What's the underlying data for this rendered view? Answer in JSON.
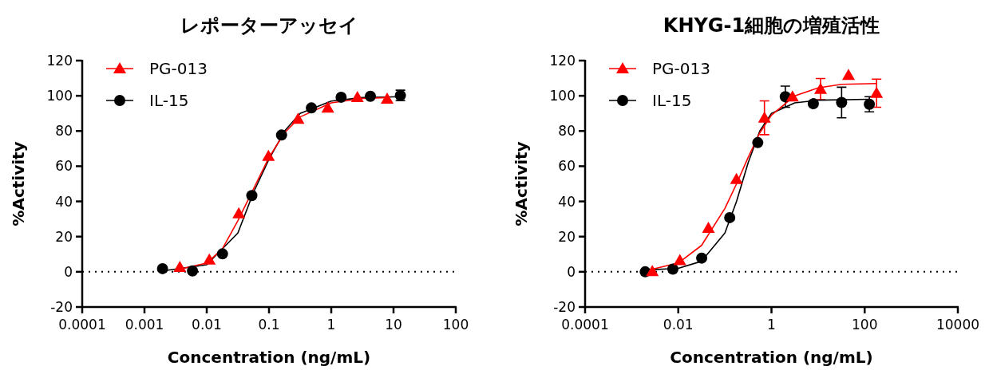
{
  "chart_data": [
    {
      "type": "scatter",
      "title": "レポーターアッセイ",
      "xlabel": "Concentration (ng/mL)",
      "ylabel": "%Activity",
      "log": "x",
      "grid": false,
      "legend": "top left",
      "xlim": [
        0.0001,
        100
      ],
      "xticks": [
        0.0001,
        0.001,
        0.01,
        0.1,
        1,
        10,
        100
      ],
      "ylim": [
        -20,
        120
      ],
      "yticks": [
        -20,
        0,
        20,
        40,
        60,
        80,
        100,
        120
      ],
      "ref_lines": [
        {
          "axis": "y",
          "value": 0,
          "line_style": "dotted",
          "color": "#000000"
        }
      ],
      "series": [
        {
          "name": "PG-013",
          "type": "scatter",
          "color": "#ff0000",
          "marker": "triangle",
          "x": [
            0.0037,
            0.011,
            0.0327,
            0.098,
            0.293,
            0.88,
            2.63,
            7.9
          ],
          "values": [
            2.6,
            6.8,
            33.1,
            65.7,
            86.8,
            93.2,
            99.2,
            98.2
          ]
        },
        {
          "name": "IL-15",
          "type": "scatter",
          "color": "#000000",
          "marker": "circle",
          "x": [
            0.00195,
            0.0059,
            0.0179,
            0.053,
            0.159,
            0.48,
            1.44,
            4.25,
            12.9
          ],
          "values": [
            1.8,
            0.5,
            10.2,
            43.3,
            77.7,
            93.1,
            99.2,
            99.7,
            100.2
          ],
          "errors": [
            null,
            null,
            null,
            null,
            null,
            null,
            null,
            null,
            3
          ]
        },
        {
          "type": "line",
          "color": "#ff0000",
          "marker": "none",
          "x": [
            0.0037,
            0.01,
            0.0178,
            0.0316,
            0.0562,
            0.1,
            0.178,
            0.316,
            1,
            3.16,
            7.9
          ],
          "values": [
            1.5,
            5,
            13,
            29,
            47,
            65,
            79,
            88,
            96,
            98.5,
            99
          ]
        },
        {
          "type": "line",
          "color": "#000000",
          "marker": "none",
          "x": [
            0.00195,
            0.01,
            0.0316,
            0.0562,
            0.1,
            0.178,
            0.316,
            1,
            3.16,
            12.9
          ],
          "values": [
            0.5,
            4,
            22,
            45,
            64,
            80,
            90,
            97,
            99,
            99.5
          ]
        }
      ]
    },
    {
      "type": "scatter",
      "title": "KHYG-1細胞の増殖活性",
      "xlabel": "Concentration (ng/mL)",
      "ylabel": "%Activity",
      "log": "x",
      "grid": false,
      "legend": "top left",
      "xlim": [
        0.0001,
        10000
      ],
      "xticks": [
        0.0001,
        0.01,
        1,
        100,
        10000
      ],
      "ylim": [
        -20,
        120
      ],
      "yticks": [
        -20,
        0,
        20,
        40,
        60,
        80,
        100,
        120
      ],
      "ref_lines": [
        {
          "axis": "y",
          "value": 0,
          "line_style": "dotted",
          "color": "#000000"
        }
      ],
      "series": [
        {
          "name": "PG-013",
          "type": "scatter",
          "color": "#ff0000",
          "marker": "triangle",
          "x": [
            0.00277,
            0.0108,
            0.0443,
            0.177,
            0.706,
            2.82,
            11.3,
            45,
            180
          ],
          "values": [
            0.3,
            6.5,
            24.8,
            52.6,
            87.5,
            99.5,
            103.8,
            111.7,
            101.5
          ],
          "errors": [
            null,
            null,
            null,
            null,
            9.6,
            null,
            6,
            null,
            8
          ]
        },
        {
          "name": "IL-15",
          "type": "scatter",
          "color": "#000000",
          "marker": "circle",
          "x": [
            0.00195,
            0.00766,
            0.0318,
            0.127,
            0.508,
            1.98,
            7.9,
            32,
            126
          ],
          "values": [
            0,
            1.5,
            7.8,
            30.8,
            73.4,
            99.5,
            95.5,
            96.2,
            95.2
          ],
          "errors": [
            null,
            null,
            null,
            null,
            null,
            6,
            null,
            8.7,
            4.3
          ]
        },
        {
          "type": "line",
          "color": "#ff0000",
          "marker": "none",
          "x": [
            0.00282,
            0.01,
            0.0316,
            0.1,
            0.178,
            0.316,
            0.562,
            1,
            3.16,
            10,
            31.6,
            178
          ],
          "values": [
            1.5,
            5,
            15,
            36,
            50,
            65,
            79,
            89,
            100,
            104.5,
            106.5,
            107
          ]
        },
        {
          "type": "line",
          "color": "#000000",
          "marker": "none",
          "x": [
            0.002,
            0.01,
            0.0316,
            0.1,
            0.178,
            0.316,
            0.562,
            1,
            3.16,
            10,
            126
          ],
          "values": [
            1,
            2,
            6,
            22,
            40,
            62,
            80,
            90,
            96,
            97.5,
            98
          ]
        }
      ]
    }
  ]
}
